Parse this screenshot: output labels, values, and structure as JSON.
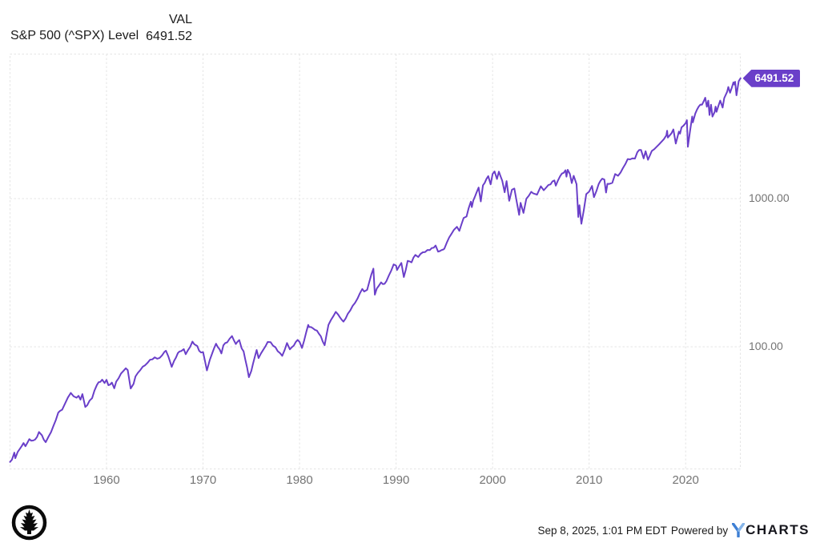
{
  "header": {
    "title": "S&P 500 (^SPX) Level",
    "column_label": "VAL",
    "current_value": "6491.52"
  },
  "badge": {
    "label": "6491.52"
  },
  "footer": {
    "timestamp": "Sep 8, 2025, 1:01 PM EDT",
    "powered_by": "Powered by",
    "brand_rest": "CHARTS",
    "logo_icon": "pine-tree-logo",
    "brand_icon": "ycharts-y-logo"
  },
  "colors": {
    "accent_purple": "#6A3FC9",
    "grid_gray": "#e4e4e4",
    "tick_gray": "#747474",
    "brand_blue_dark": "#3E7FD4",
    "brand_blue_light": "#85B4E8"
  },
  "chart_data": {
    "type": "line",
    "title": "S&P 500 (^SPX) Level",
    "series_name": "S&P 500 Index Level",
    "y_scale": "log",
    "x_range": [
      1950,
      2025.75
    ],
    "x_ticks": [
      1960,
      1970,
      1980,
      1990,
      2000,
      2010,
      2020
    ],
    "y_ticks": [
      {
        "label": "1000.00",
        "value": 1000
      },
      {
        "label": "100.00",
        "value": 100
      }
    ],
    "legend": "none",
    "grid": "on",
    "last_value": 6491.52,
    "points": [
      [
        1950.0,
        16.7
      ],
      [
        1950.2,
        17.3
      ],
      [
        1950.45,
        19.3
      ],
      [
        1950.55,
        17.7
      ],
      [
        1950.8,
        19.5
      ],
      [
        1951.0,
        20.4
      ],
      [
        1951.4,
        22.4
      ],
      [
        1951.6,
        21.3
      ],
      [
        1952.0,
        23.8
      ],
      [
        1952.4,
        23.3
      ],
      [
        1952.8,
        24.6
      ],
      [
        1953.0,
        26.6
      ],
      [
        1953.3,
        25.3
      ],
      [
        1953.7,
        22.7
      ],
      [
        1954.0,
        24.8
      ],
      [
        1954.5,
        29.2
      ],
      [
        1955.0,
        36.0
      ],
      [
        1955.4,
        37.6
      ],
      [
        1955.7,
        41.4
      ],
      [
        1956.0,
        45.5
      ],
      [
        1956.3,
        48.8
      ],
      [
        1956.6,
        46.3
      ],
      [
        1956.9,
        45.3
      ],
      [
        1957.1,
        46.7
      ],
      [
        1957.3,
        44.0
      ],
      [
        1957.5,
        47.9
      ],
      [
        1957.8,
        39.2
      ],
      [
        1958.0,
        40.3
      ],
      [
        1958.5,
        45.0
      ],
      [
        1959.0,
        55.2
      ],
      [
        1959.55,
        60.0
      ],
      [
        1959.8,
        56.9
      ],
      [
        1960.0,
        59.9
      ],
      [
        1960.2,
        55.0
      ],
      [
        1960.55,
        57.3
      ],
      [
        1960.8,
        52.5
      ],
      [
        1961.0,
        58.1
      ],
      [
        1961.5,
        66.0
      ],
      [
        1962.0,
        71.6
      ],
      [
        1962.2,
        69.6
      ],
      [
        1962.5,
        52.3
      ],
      [
        1962.8,
        56.2
      ],
      [
        1963.0,
        63.1
      ],
      [
        1963.5,
        69.6
      ],
      [
        1964.0,
        75.0
      ],
      [
        1964.5,
        81.7
      ],
      [
        1965.0,
        84.8
      ],
      [
        1965.5,
        84.1
      ],
      [
        1966.0,
        92.4
      ],
      [
        1966.15,
        94.1
      ],
      [
        1966.4,
        86.1
      ],
      [
        1966.75,
        73.2
      ],
      [
        1967.0,
        80.3
      ],
      [
        1967.4,
        90.9
      ],
      [
        1967.75,
        93.6
      ],
      [
        1968.0,
        96.5
      ],
      [
        1968.2,
        89.1
      ],
      [
        1968.9,
        108.4
      ],
      [
        1969.1,
        103.9
      ],
      [
        1969.4,
        101.3
      ],
      [
        1969.6,
        94.0
      ],
      [
        1970.0,
        92.1
      ],
      [
        1970.4,
        69.3
      ],
      [
        1970.7,
        81.5
      ],
      [
        1971.0,
        92.2
      ],
      [
        1971.35,
        104.8
      ],
      [
        1971.9,
        90.2
      ],
      [
        1972.1,
        102.1
      ],
      [
        1972.5,
        107.1
      ],
      [
        1973.0,
        118.1
      ],
      [
        1973.4,
        104.3
      ],
      [
        1973.75,
        111.0
      ],
      [
        1974.0,
        97.6
      ],
      [
        1974.2,
        93.1
      ],
      [
        1974.75,
        62.3
      ],
      [
        1975.0,
        68.6
      ],
      [
        1975.55,
        95.2
      ],
      [
        1975.75,
        83.9
      ],
      [
        1976.0,
        90.2
      ],
      [
        1976.7,
        107.8
      ],
      [
        1977.0,
        107.5
      ],
      [
        1977.5,
        99.3
      ],
      [
        1978.2,
        86.9
      ],
      [
        1978.7,
        106.0
      ],
      [
        1979.0,
        96.1
      ],
      [
        1979.8,
        111.3
      ],
      [
        1980.0,
        107.9
      ],
      [
        1980.25,
        98.2
      ],
      [
        1980.9,
        140.5
      ],
      [
        1981.0,
        135.8
      ],
      [
        1981.6,
        130.0
      ],
      [
        1982.0,
        122.6
      ],
      [
        1982.6,
        102.4
      ],
      [
        1983.0,
        140.6
      ],
      [
        1983.75,
        172.0
      ],
      [
        1984.0,
        164.9
      ],
      [
        1984.55,
        147.8
      ],
      [
        1985.0,
        167.2
      ],
      [
        1985.5,
        189.0
      ],
      [
        1986.0,
        211.3
      ],
      [
        1986.5,
        245.7
      ],
      [
        1986.7,
        236.0
      ],
      [
        1987.0,
        242.2
      ],
      [
        1987.65,
        336.8
      ],
      [
        1987.8,
        224.8
      ],
      [
        1988.0,
        247.1
      ],
      [
        1988.45,
        272.0
      ],
      [
        1988.8,
        266.0
      ],
      [
        1989.0,
        277.7
      ],
      [
        1989.75,
        359.8
      ],
      [
        1990.0,
        353.4
      ],
      [
        1990.1,
        330.0
      ],
      [
        1990.55,
        368.0
      ],
      [
        1990.8,
        295.5
      ],
      [
        1991.0,
        330.2
      ],
      [
        1991.2,
        380.0
      ],
      [
        1991.6,
        371.2
      ],
      [
        1992.0,
        417.1
      ],
      [
        1992.3,
        403.7
      ],
      [
        1993.0,
        435.7
      ],
      [
        1993.5,
        450.0
      ],
      [
        1994.1,
        482.0
      ],
      [
        1994.35,
        438.9
      ],
      [
        1994.9,
        453.7
      ],
      [
        1995.0,
        459.3
      ],
      [
        1995.5,
        547.1
      ],
      [
        1996.0,
        615.9
      ],
      [
        1996.3,
        645.5
      ],
      [
        1996.55,
        605.9
      ],
      [
        1997.0,
        740.7
      ],
      [
        1997.3,
        757.1
      ],
      [
        1997.75,
        954.3
      ],
      [
        1997.85,
        876.9
      ],
      [
        1998.0,
        970.4
      ],
      [
        1998.55,
        1186.8
      ],
      [
        1998.78,
        957.3
      ],
      [
        1999.0,
        1229.2
      ],
      [
        1999.55,
        1418.8
      ],
      [
        1999.8,
        1247.4
      ],
      [
        2000.0,
        1469.3
      ],
      [
        2000.2,
        1527.5
      ],
      [
        2000.45,
        1356.6
      ],
      [
        2000.65,
        1520.8
      ],
      [
        2001.0,
        1320.3
      ],
      [
        2001.25,
        1103.3
      ],
      [
        2001.45,
        1312.8
      ],
      [
        2001.72,
        965.8
      ],
      [
        2002.0,
        1148.1
      ],
      [
        2002.25,
        1170.3
      ],
      [
        2002.75,
        776.8
      ],
      [
        2002.9,
        936.3
      ],
      [
        2003.2,
        800.7
      ],
      [
        2003.5,
        998.7
      ],
      [
        2004.0,
        1111.9
      ],
      [
        2004.6,
        1063.2
      ],
      [
        2005.0,
        1211.9
      ],
      [
        2005.3,
        1137.5
      ],
      [
        2006.0,
        1248.3
      ],
      [
        2006.4,
        1325.8
      ],
      [
        2006.55,
        1223.7
      ],
      [
        2007.0,
        1418.3
      ],
      [
        2007.55,
        1553.1
      ],
      [
        2007.65,
        1406.7
      ],
      [
        2007.78,
        1565.2
      ],
      [
        2008.0,
        1468.4
      ],
      [
        2008.2,
        1273.4
      ],
      [
        2008.4,
        1426.6
      ],
      [
        2008.7,
        1251.7
      ],
      [
        2008.88,
        752.4
      ],
      [
        2009.0,
        903.3
      ],
      [
        2009.2,
        676.5
      ],
      [
        2009.7,
        1071.7
      ],
      [
        2010.0,
        1115.1
      ],
      [
        2010.3,
        1217.3
      ],
      [
        2010.5,
        1022.6
      ],
      [
        2011.0,
        1257.6
      ],
      [
        2011.35,
        1363.6
      ],
      [
        2011.58,
        1345.0
      ],
      [
        2011.75,
        1099.2
      ],
      [
        2011.9,
        1258.5
      ],
      [
        2012.1,
        1257.6
      ],
      [
        2012.4,
        1278.0
      ],
      [
        2012.7,
        1465.8
      ],
      [
        2013.0,
        1426.2
      ],
      [
        2013.5,
        1606.3
      ],
      [
        2014.0,
        1848.4
      ],
      [
        2014.75,
        1862.5
      ],
      [
        2015.0,
        2058.9
      ],
      [
        2015.38,
        2130.8
      ],
      [
        2015.65,
        1867.6
      ],
      [
        2015.85,
        2089.2
      ],
      [
        2016.1,
        1829.1
      ],
      [
        2016.5,
        2098.9
      ],
      [
        2017.0,
        2238.8
      ],
      [
        2017.5,
        2423.4
      ],
      [
        2018.0,
        2673.6
      ],
      [
        2018.08,
        2872.9
      ],
      [
        2018.15,
        2581.0
      ],
      [
        2018.73,
        2930.8
      ],
      [
        2018.98,
        2351.1
      ],
      [
        2019.3,
        2834.4
      ],
      [
        2019.42,
        2744.5
      ],
      [
        2019.58,
        3025.9
      ],
      [
        2020.0,
        3230.8
      ],
      [
        2020.13,
        3386.2
      ],
      [
        2020.23,
        2237.4
      ],
      [
        2020.68,
        3580.8
      ],
      [
        2020.75,
        3269.9
      ],
      [
        2021.0,
        3756.1
      ],
      [
        2021.35,
        4181.2
      ],
      [
        2021.7,
        4307.5
      ],
      [
        2022.03,
        4796.6
      ],
      [
        2022.2,
        4170.7
      ],
      [
        2022.35,
        4582.6
      ],
      [
        2022.47,
        3666.8
      ],
      [
        2022.63,
        4305.2
      ],
      [
        2022.78,
        3577.0
      ],
      [
        2023.0,
        3839.5
      ],
      [
        2023.1,
        4179.8
      ],
      [
        2023.2,
        3855.8
      ],
      [
        2023.58,
        4588.9
      ],
      [
        2023.83,
        4117.4
      ],
      [
        2024.0,
        4769.8
      ],
      [
        2024.3,
        5254.4
      ],
      [
        2024.42,
        5667.2
      ],
      [
        2024.6,
        5186.3
      ],
      [
        2024.95,
        6090.3
      ],
      [
        2025.05,
        5881.6
      ],
      [
        2025.13,
        6144.2
      ],
      [
        2025.27,
        4982.8
      ],
      [
        2025.5,
        6204.9
      ],
      [
        2025.69,
        6491.52
      ]
    ]
  }
}
